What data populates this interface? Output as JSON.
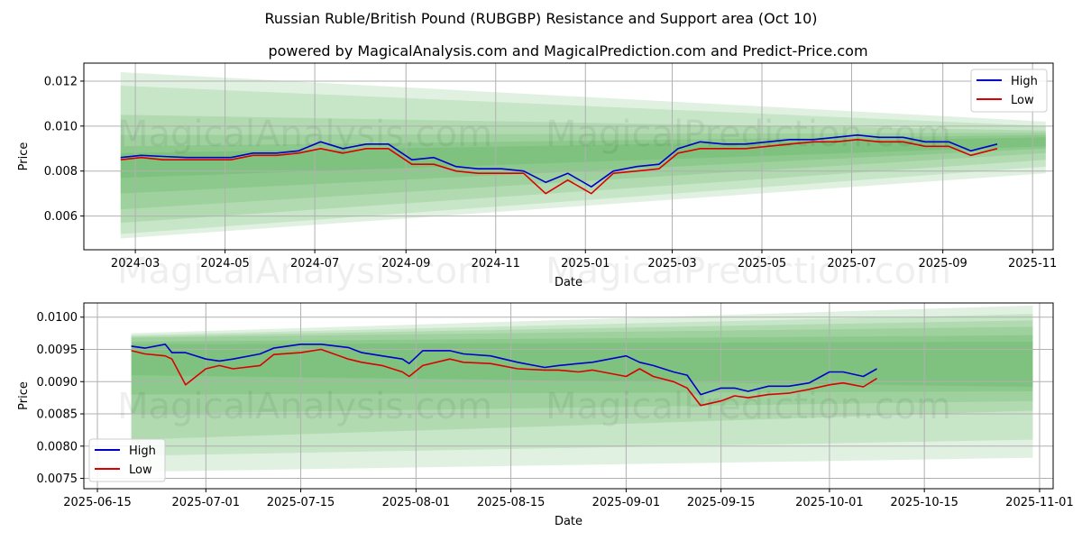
{
  "title": "Russian Ruble/British Pound (RUBGBP) Resistance and Support area (Oct 10)",
  "subtitle": "powered by MagicalAnalysis.com and MagicalPrediction.com and Predict-Price.com",
  "watermarks": [
    "MagicalAnalysis.com",
    "MagicalPrediction.com"
  ],
  "colors": {
    "high": "#0000cc",
    "low": "#dd0000",
    "band": "#2e9a2e",
    "grid": "#b0b0b0"
  },
  "chart_data": [
    {
      "type": "line",
      "title": "",
      "xlabel": "Date",
      "ylabel": "Price",
      "grid": true,
      "legend": "top-right",
      "xlim": [
        "2024-01-26",
        "2025-11-15"
      ],
      "ylim": [
        0.0045,
        0.0128
      ],
      "yticks": [
        0.006,
        0.008,
        0.01,
        0.012
      ],
      "ytick_labels": [
        "0.006",
        "0.008",
        "0.010",
        "0.012"
      ],
      "xticks": [
        "2024-03-01",
        "2024-05-01",
        "2024-07-01",
        "2024-09-01",
        "2024-11-01",
        "2025-01-01",
        "2025-03-01",
        "2025-05-01",
        "2025-07-01",
        "2025-09-01",
        "2025-11-01"
      ],
      "xtick_labels": [
        "2024-03",
        "2024-05",
        "2024-07",
        "2024-09",
        "2024-11",
        "2025-01",
        "2025-03",
        "2025-05",
        "2025-07",
        "2025-09",
        "2025-11"
      ],
      "band_start": "2024-02-20",
      "band_end": "2025-11-10",
      "bands": [
        {
          "start": [
            0.005,
            0.0124
          ],
          "end": [
            0.0079,
            0.0102
          ],
          "opacity": 0.14
        },
        {
          "start": [
            0.0052,
            0.0118
          ],
          "end": [
            0.0082,
            0.01
          ],
          "opacity": 0.14
        },
        {
          "start": [
            0.0057,
            0.0105
          ],
          "end": [
            0.0085,
            0.0098
          ],
          "opacity": 0.14
        },
        {
          "start": [
            0.0063,
            0.0096
          ],
          "end": [
            0.0088,
            0.0097
          ],
          "opacity": 0.14
        },
        {
          "start": [
            0.007,
            0.0091
          ],
          "end": [
            0.009,
            0.0096
          ],
          "opacity": 0.14
        },
        {
          "start": [
            0.0077,
            0.0088
          ],
          "end": [
            0.0091,
            0.0095
          ],
          "opacity": 0.14
        }
      ],
      "series": [
        {
          "name": "High",
          "x": [
            "2024-02-20",
            "2024-03-05",
            "2024-03-20",
            "2024-04-05",
            "2024-04-20",
            "2024-05-05",
            "2024-05-20",
            "2024-06-05",
            "2024-06-20",
            "2024-07-05",
            "2024-07-20",
            "2024-08-05",
            "2024-08-20",
            "2024-09-05",
            "2024-09-20",
            "2024-10-05",
            "2024-10-20",
            "2024-11-05",
            "2024-11-20",
            "2024-12-05",
            "2024-12-20",
            "2025-01-05",
            "2025-01-20",
            "2025-02-05",
            "2025-02-20",
            "2025-03-05",
            "2025-03-20",
            "2025-04-05",
            "2025-04-20",
            "2025-05-05",
            "2025-05-20",
            "2025-06-05",
            "2025-06-20",
            "2025-07-05",
            "2025-07-20",
            "2025-08-05",
            "2025-08-20",
            "2025-09-05",
            "2025-09-20",
            "2025-10-08"
          ],
          "values": [
            0.0086,
            0.0087,
            0.00865,
            0.0086,
            0.0086,
            0.0086,
            0.0088,
            0.0088,
            0.0089,
            0.0093,
            0.009,
            0.0092,
            0.0092,
            0.0085,
            0.0086,
            0.0082,
            0.0081,
            0.0081,
            0.008,
            0.0075,
            0.0079,
            0.0073,
            0.008,
            0.0082,
            0.0083,
            0.009,
            0.0093,
            0.0092,
            0.0092,
            0.0093,
            0.0094,
            0.0094,
            0.0095,
            0.0096,
            0.0095,
            0.0095,
            0.0093,
            0.0093,
            0.0089,
            0.0092
          ]
        },
        {
          "name": "Low",
          "x": [
            "2024-02-20",
            "2024-03-05",
            "2024-03-20",
            "2024-04-05",
            "2024-04-20",
            "2024-05-05",
            "2024-05-20",
            "2024-06-05",
            "2024-06-20",
            "2024-07-05",
            "2024-07-20",
            "2024-08-05",
            "2024-08-20",
            "2024-09-05",
            "2024-09-20",
            "2024-10-05",
            "2024-10-20",
            "2024-11-05",
            "2024-11-20",
            "2024-12-05",
            "2024-12-20",
            "2025-01-05",
            "2025-01-20",
            "2025-02-05",
            "2025-02-20",
            "2025-03-05",
            "2025-03-20",
            "2025-04-05",
            "2025-04-20",
            "2025-05-05",
            "2025-05-20",
            "2025-06-05",
            "2025-06-20",
            "2025-07-05",
            "2025-07-20",
            "2025-08-05",
            "2025-08-20",
            "2025-09-05",
            "2025-09-20",
            "2025-10-08"
          ],
          "values": [
            0.0085,
            0.0086,
            0.0085,
            0.0085,
            0.0085,
            0.0085,
            0.0087,
            0.0087,
            0.0088,
            0.009,
            0.0088,
            0.009,
            0.009,
            0.0083,
            0.0083,
            0.008,
            0.0079,
            0.0079,
            0.0079,
            0.007,
            0.0076,
            0.007,
            0.0079,
            0.008,
            0.0081,
            0.0088,
            0.009,
            0.009,
            0.009,
            0.0091,
            0.0092,
            0.0093,
            0.0093,
            0.0094,
            0.0093,
            0.0093,
            0.0091,
            0.0091,
            0.0087,
            0.009
          ]
        }
      ]
    },
    {
      "type": "line",
      "title": "",
      "xlabel": "Date",
      "ylabel": "Price",
      "grid": true,
      "legend": "bottom-left",
      "xlim": [
        "2025-06-13",
        "2025-11-03"
      ],
      "ylim": [
        0.00734,
        0.01022
      ],
      "yticks": [
        0.0075,
        0.008,
        0.0085,
        0.009,
        0.0095,
        0.01
      ],
      "ytick_labels": [
        "0.0075",
        "0.0080",
        "0.0085",
        "0.0090",
        "0.0095",
        "0.0100"
      ],
      "xticks": [
        "2025-06-15",
        "2025-07-01",
        "2025-07-15",
        "2025-08-01",
        "2025-08-15",
        "2025-09-01",
        "2025-09-15",
        "2025-10-01",
        "2025-10-15",
        "2025-11-01"
      ],
      "xtick_labels": [
        "2025-06-15",
        "2025-07-01",
        "2025-07-15",
        "2025-08-01",
        "2025-08-15",
        "2025-09-01",
        "2025-09-15",
        "2025-10-01",
        "2025-10-15",
        "2025-11-01"
      ],
      "band_start": "2025-06-20",
      "band_end": "2025-10-31",
      "bands": [
        {
          "start": [
            0.0076,
            0.00975
          ],
          "end": [
            0.00782,
            0.01018
          ],
          "opacity": 0.14
        },
        {
          "start": [
            0.00785,
            0.00972
          ],
          "end": [
            0.0081,
            0.01005
          ],
          "opacity": 0.14
        },
        {
          "start": [
            0.0081,
            0.0097
          ],
          "end": [
            0.00855,
            0.00995
          ],
          "opacity": 0.14
        },
        {
          "start": [
            0.0085,
            0.00968
          ],
          "end": [
            0.0087,
            0.00985
          ],
          "opacity": 0.14
        },
        {
          "start": [
            0.0088,
            0.00962
          ],
          "end": [
            0.00885,
            0.00972
          ],
          "opacity": 0.14
        },
        {
          "start": [
            0.0091,
            0.00958
          ],
          "end": [
            0.00892,
            0.00962
          ],
          "opacity": 0.14
        }
      ],
      "series": [
        {
          "name": "High",
          "x": [
            "2025-06-20",
            "2025-06-22",
            "2025-06-25",
            "2025-06-26",
            "2025-06-28",
            "2025-07-01",
            "2025-07-03",
            "2025-07-05",
            "2025-07-09",
            "2025-07-11",
            "2025-07-15",
            "2025-07-18",
            "2025-07-22",
            "2025-07-24",
            "2025-07-27",
            "2025-07-30",
            "2025-07-31",
            "2025-08-02",
            "2025-08-06",
            "2025-08-08",
            "2025-08-12",
            "2025-08-16",
            "2025-08-20",
            "2025-08-22",
            "2025-08-25",
            "2025-08-27",
            "2025-09-01",
            "2025-09-03",
            "2025-09-05",
            "2025-09-08",
            "2025-09-10",
            "2025-09-12",
            "2025-09-15",
            "2025-09-17",
            "2025-09-19",
            "2025-09-22",
            "2025-09-25",
            "2025-09-28",
            "2025-10-01",
            "2025-10-03",
            "2025-10-06",
            "2025-10-08"
          ],
          "values": [
            0.00955,
            0.00952,
            0.00958,
            0.00945,
            0.00945,
            0.00935,
            0.00932,
            0.00935,
            0.00943,
            0.00952,
            0.00958,
            0.00958,
            0.00953,
            0.00945,
            0.0094,
            0.00935,
            0.00928,
            0.00948,
            0.00948,
            0.00943,
            0.0094,
            0.0093,
            0.00922,
            0.00925,
            0.00928,
            0.0093,
            0.0094,
            0.0093,
            0.00925,
            0.00915,
            0.0091,
            0.0088,
            0.0089,
            0.0089,
            0.00885,
            0.00893,
            0.00893,
            0.00898,
            0.00915,
            0.00915,
            0.00908,
            0.0092
          ]
        },
        {
          "name": "Low",
          "x": [
            "2025-06-20",
            "2025-06-22",
            "2025-06-25",
            "2025-06-26",
            "2025-06-28",
            "2025-07-01",
            "2025-07-03",
            "2025-07-05",
            "2025-07-09",
            "2025-07-11",
            "2025-07-15",
            "2025-07-18",
            "2025-07-22",
            "2025-07-24",
            "2025-07-27",
            "2025-07-30",
            "2025-07-31",
            "2025-08-02",
            "2025-08-06",
            "2025-08-08",
            "2025-08-12",
            "2025-08-16",
            "2025-08-20",
            "2025-08-22",
            "2025-08-25",
            "2025-08-27",
            "2025-09-01",
            "2025-09-03",
            "2025-09-05",
            "2025-09-08",
            "2025-09-10",
            "2025-09-12",
            "2025-09-15",
            "2025-09-17",
            "2025-09-19",
            "2025-09-22",
            "2025-09-25",
            "2025-09-28",
            "2025-10-01",
            "2025-10-03",
            "2025-10-06",
            "2025-10-08"
          ],
          "values": [
            0.00948,
            0.00943,
            0.0094,
            0.00935,
            0.00895,
            0.0092,
            0.00925,
            0.0092,
            0.00925,
            0.00942,
            0.00945,
            0.0095,
            0.00935,
            0.0093,
            0.00925,
            0.00915,
            0.00908,
            0.00925,
            0.00935,
            0.0093,
            0.00928,
            0.0092,
            0.00918,
            0.00918,
            0.00915,
            0.00918,
            0.00908,
            0.0092,
            0.00908,
            0.009,
            0.0089,
            0.00863,
            0.0087,
            0.00878,
            0.00875,
            0.0088,
            0.00882,
            0.00888,
            0.00895,
            0.00898,
            0.00892,
            0.00905
          ]
        }
      ]
    }
  ]
}
